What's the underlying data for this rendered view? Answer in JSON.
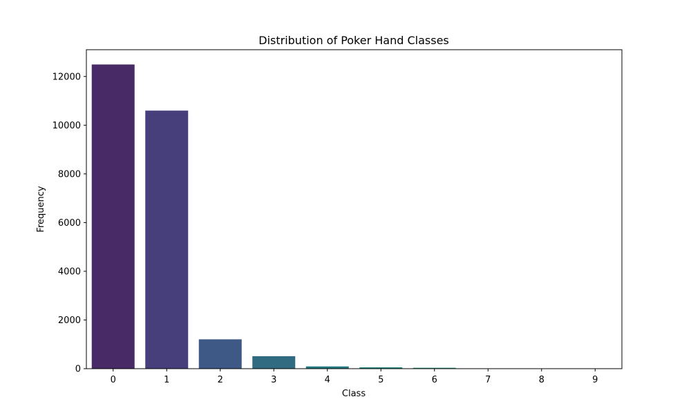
{
  "chart_data": {
    "type": "bar",
    "title": "Distribution of Poker Hand Classes",
    "xlabel": "Class",
    "ylabel": "Frequency",
    "categories": [
      "0",
      "1",
      "2",
      "3",
      "4",
      "5",
      "6",
      "7",
      "8",
      "9"
    ],
    "values": [
      12493,
      10599,
      1206,
      513,
      93,
      54,
      36,
      6,
      5,
      5
    ],
    "colors": [
      "#482a66",
      "#473f7c",
      "#3e5985",
      "#306b81",
      "#25797f",
      "#1e867e",
      "#25937a",
      "#3aa16d",
      "#5aaf5d",
      "#82ba4e"
    ],
    "ylim": [
      0,
      13100
    ],
    "yticks": [
      0,
      2000,
      4000,
      6000,
      8000,
      10000,
      12000
    ],
    "grid": false,
    "legend": "none"
  }
}
